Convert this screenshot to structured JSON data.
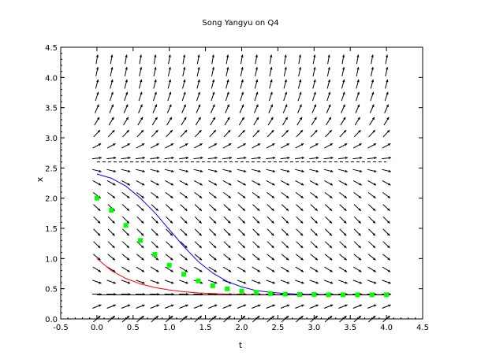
{
  "chart_data": {
    "type": "scatter",
    "title": "Song Yangyu on Q4",
    "xlabel": "t",
    "ylabel": "x",
    "xlim": [
      -0.5,
      4.5
    ],
    "ylim": [
      0.0,
      4.5
    ],
    "x_ticks": [
      "-0.5",
      "0.0",
      "0.5",
      "1.0",
      "1.5",
      "2.0",
      "2.5",
      "3.0",
      "3.5",
      "4.0",
      "4.5"
    ],
    "y_ticks": [
      "0.0",
      "0.5",
      "1.0",
      "1.5",
      "2.0",
      "2.5",
      "3.0",
      "3.5",
      "4.0",
      "4.5"
    ],
    "grid": false,
    "legend": "none",
    "direction_field": {
      "t_range": [
        0.0,
        4.0
      ],
      "x_range": [
        0.0,
        4.3
      ],
      "nt": 21,
      "nx": 22,
      "equation": "dx/dt = (x - 0.4)(x - 2.6)",
      "color": "#000000"
    },
    "series": [
      {
        "kind": "line",
        "color": "#0000ff",
        "x": [
          0.0,
          0.2,
          0.4,
          0.6,
          0.8,
          1.0,
          1.2,
          1.4,
          1.6,
          1.8,
          2.0,
          2.2,
          2.4,
          2.6,
          2.8,
          3.0,
          3.2,
          3.4,
          3.6,
          3.8,
          4.0
        ],
        "y": [
          2.4,
          2.33,
          2.2,
          2.0,
          1.76,
          1.48,
          1.2,
          0.95,
          0.76,
          0.62,
          0.53,
          0.47,
          0.44,
          0.42,
          0.41,
          0.405,
          0.402,
          0.401,
          0.4,
          0.4,
          0.4
        ]
      },
      {
        "kind": "line",
        "color": "#ff0000",
        "x": [
          0.0,
          0.2,
          0.4,
          0.6,
          0.8,
          1.0,
          1.2,
          1.4,
          1.6,
          1.8,
          2.0,
          2.2,
          2.4,
          2.6,
          2.8,
          3.0,
          3.2,
          3.4,
          3.6,
          3.8,
          4.0
        ],
        "y": [
          1.0,
          0.8,
          0.67,
          0.58,
          0.52,
          0.48,
          0.45,
          0.43,
          0.42,
          0.41,
          0.405,
          0.402,
          0.401,
          0.4,
          0.4,
          0.4,
          0.4,
          0.4,
          0.4,
          0.4,
          0.4
        ]
      },
      {
        "kind": "line",
        "dashed": true,
        "color": "#000000",
        "x": [
          0.0,
          4.0
        ],
        "y": [
          2.6,
          2.6
        ]
      },
      {
        "kind": "line",
        "color": "#000000",
        "x": [
          0.0,
          4.0
        ],
        "y": [
          0.4,
          0.4
        ]
      },
      {
        "kind": "points",
        "marker": "square",
        "color": "#00ff00",
        "x": [
          0.0,
          0.2,
          0.4,
          0.6,
          0.8,
          1.0,
          1.2,
          1.4,
          1.6,
          1.8,
          2.0,
          2.2,
          2.4,
          2.6,
          2.8,
          3.0,
          3.2,
          3.4,
          3.6,
          3.8,
          4.0
        ],
        "y": [
          2.0,
          1.8,
          1.55,
          1.3,
          1.07,
          0.89,
          0.74,
          0.63,
          0.55,
          0.5,
          0.46,
          0.44,
          0.42,
          0.41,
          0.405,
          0.405,
          0.4,
          0.4,
          0.4,
          0.4,
          0.4
        ]
      }
    ]
  }
}
